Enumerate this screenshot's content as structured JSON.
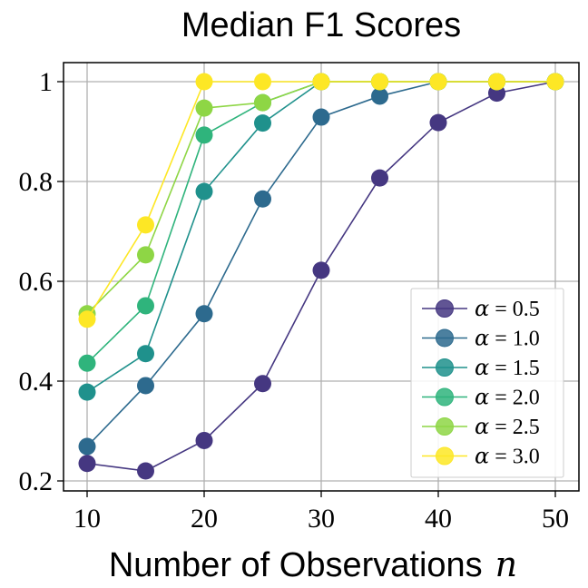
{
  "chart_data": {
    "type": "line",
    "title": "Median F1 Scores",
    "xlabel": "Number of Observations",
    "xlabel_var": "n",
    "ylabel": "",
    "xlim": [
      8,
      52
    ],
    "ylim": [
      0.18,
      1.04
    ],
    "xticks": [
      10,
      20,
      30,
      40,
      50
    ],
    "xtick_labels": [
      "10",
      "20",
      "30",
      "40",
      "50"
    ],
    "yticks": [
      0.2,
      0.4,
      0.6,
      0.8,
      1.0
    ],
    "ytick_labels": [
      "0.2",
      "0.4",
      "0.6",
      "0.8",
      "1"
    ],
    "grid": true,
    "legend_position": "lower-right",
    "x": [
      10,
      15,
      20,
      25,
      30,
      35,
      40,
      45,
      50
    ],
    "series": [
      {
        "name": "α = 0.5",
        "alpha_value": "0.5",
        "color": "#453781",
        "values": [
          0.235,
          0.22,
          0.281,
          0.395,
          0.622,
          0.807,
          0.918,
          0.977,
          1.0
        ]
      },
      {
        "name": "α = 1.0",
        "alpha_value": "1.0",
        "color": "#2d6a8e",
        "values": [
          0.269,
          0.391,
          0.535,
          0.765,
          0.929,
          0.971,
          1.0,
          1.0,
          1.0
        ]
      },
      {
        "name": "α = 1.5",
        "alpha_value": "1.5",
        "color": "#1f918c",
        "values": [
          0.378,
          0.455,
          0.78,
          0.917,
          1.0,
          1.0,
          1.0,
          1.0,
          1.0
        ]
      },
      {
        "name": "α = 2.0",
        "alpha_value": "2.0",
        "color": "#2fb47c",
        "values": [
          0.436,
          0.551,
          0.893,
          0.958,
          1.0,
          1.0,
          1.0,
          1.0,
          1.0
        ]
      },
      {
        "name": "α = 2.5",
        "alpha_value": "2.5",
        "color": "#8ed645",
        "values": [
          0.535,
          0.653,
          0.947,
          0.958,
          1.0,
          1.0,
          1.0,
          1.0,
          1.0
        ]
      },
      {
        "name": "α = 3.0",
        "alpha_value": "3.0",
        "color": "#fde725",
        "values": [
          0.524,
          0.713,
          1.0,
          1.0,
          1.0,
          1.0,
          1.0,
          1.0,
          1.0
        ]
      }
    ]
  }
}
